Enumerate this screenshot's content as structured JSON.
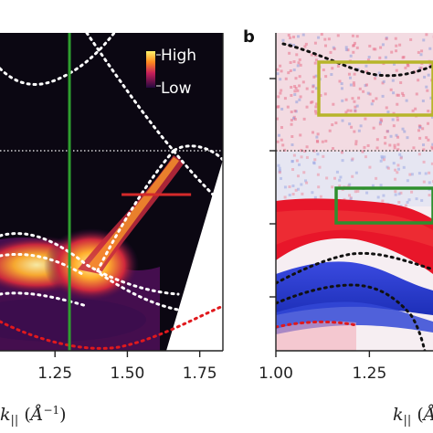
{
  "panel_b_letter": "b",
  "legend": {
    "high": "High",
    "low": "Low"
  },
  "colors": {
    "dark_bg": "#0b0712",
    "green_line": "#2f9e2f",
    "red_line": "#d42a2a",
    "olive_box": "#b7b52a",
    "green_box": "#2e8f2e",
    "red_band": "#e8162a",
    "blue_band": "#2a3fd6",
    "dotted_white": "#ffffff",
    "dotted_black": "#111111",
    "dotted_red": "#e0191d"
  },
  "chart_data": [
    {
      "type": "heatmap",
      "panel": "a",
      "x_ticks": [
        "1.25",
        "1.50",
        "1.75"
      ],
      "x_tick_values": [
        1.25,
        1.5,
        1.75
      ],
      "xlim": [
        1.06,
        1.83
      ],
      "xlabel": "k|| (Å⁻¹)",
      "colorbar": [
        "High",
        "Low"
      ],
      "vertical_marker_x": 1.3,
      "horizontal_marker_x_range": [
        1.48,
        1.72
      ]
    },
    {
      "type": "heatmap",
      "panel": "b",
      "x_ticks": [
        "1.00",
        "1.25"
      ],
      "x_tick_values": [
        1.0,
        1.25
      ],
      "xlim": [
        1.0,
        1.42
      ],
      "xlabel": "k|| (Å"
    }
  ]
}
